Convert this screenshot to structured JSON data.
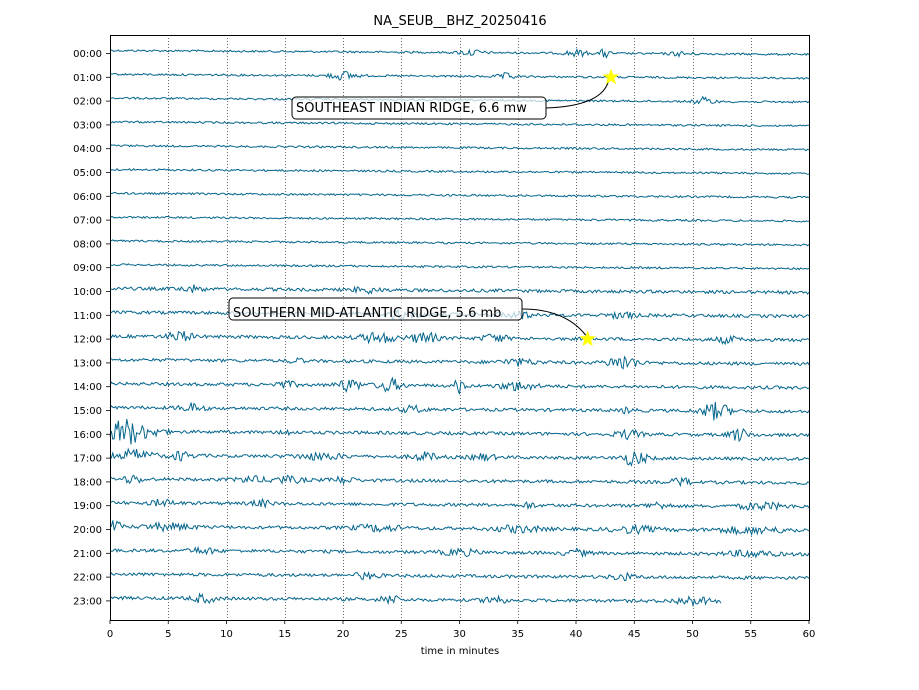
{
  "chart_data": {
    "type": "line",
    "title": "NA_SEUB__BHZ_20250416",
    "xlabel": "time in minutes",
    "ylabel": "",
    "xlim": [
      0,
      60
    ],
    "x_ticks": [
      0,
      5,
      10,
      15,
      20,
      25,
      30,
      35,
      40,
      45,
      50,
      55,
      60
    ],
    "y_tick_labels": [
      "00:00",
      "01:00",
      "02:00",
      "03:00",
      "04:00",
      "05:00",
      "06:00",
      "07:00",
      "08:00",
      "09:00",
      "10:00",
      "11:00",
      "12:00",
      "13:00",
      "14:00",
      "15:00",
      "16:00",
      "17:00",
      "18:00",
      "19:00",
      "20:00",
      "21:00",
      "22:00",
      "23:00"
    ],
    "grid": "vertical dotted lines at each x tick",
    "trace_color": "#05668d",
    "last_trace_end_minute": 52.5,
    "events": [
      {
        "label": "SOUTHEAST INDIAN RIDGE, 6.6 mw",
        "hour": 1,
        "minute": 43,
        "marker": "star",
        "marker_color": "#ffff00"
      },
      {
        "label": "SOUTHERN MID-ATLANTIC RIDGE, 5.6 mb",
        "hour": 12,
        "minute": 41,
        "marker": "star",
        "marker_color": "#ffff00"
      }
    ]
  }
}
